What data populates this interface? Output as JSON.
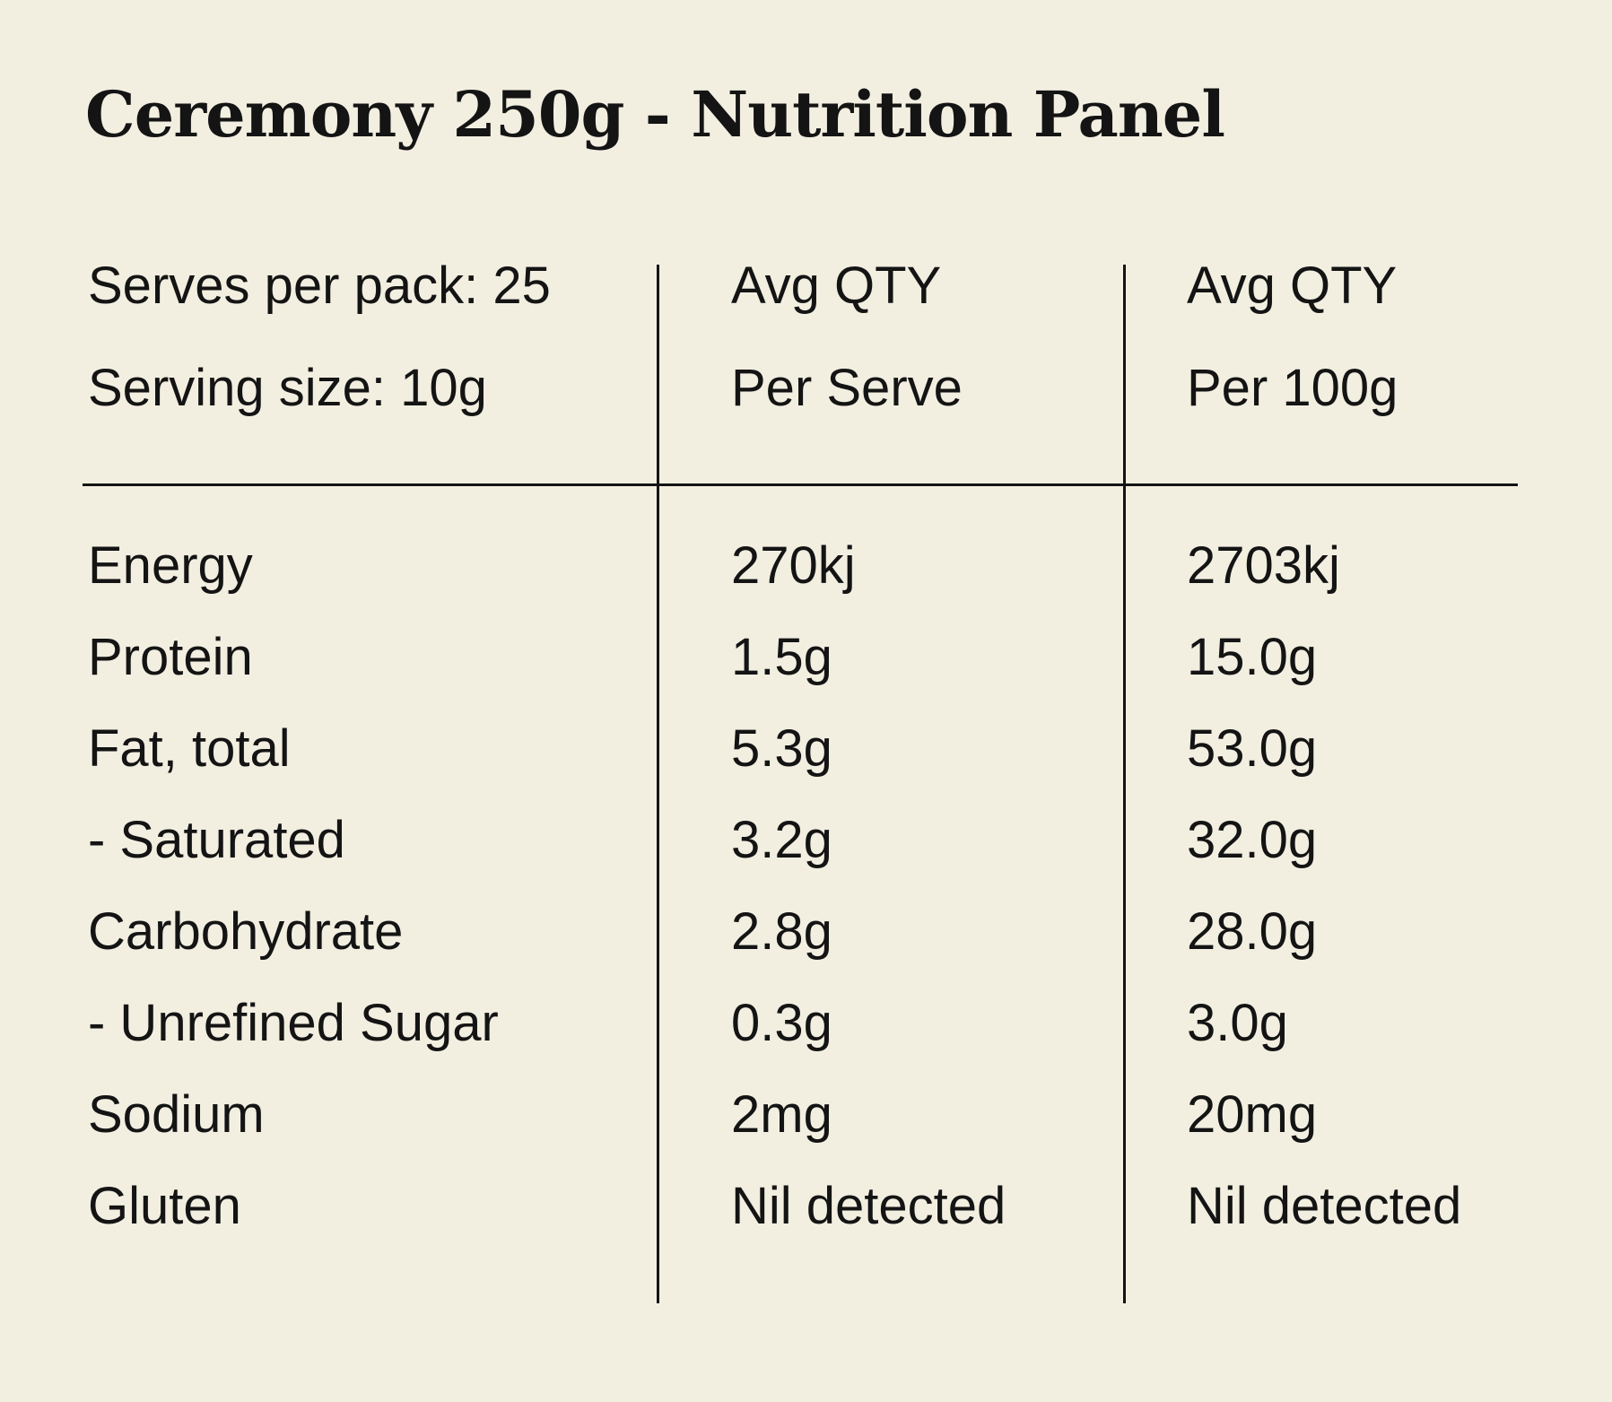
{
  "theme": {
    "background": "#f2efe1",
    "text": "#141414"
  },
  "title": "Ceremony 250g - Nutrition Panel",
  "table": {
    "header": {
      "serves_per_pack": "Serves per pack: 25",
      "serving_size": "Serving size: 10g",
      "col2_line1": "Avg QTY",
      "col2_line2": "Per Serve",
      "col3_line1": "Avg QTY",
      "col3_line2": "Per 100g"
    },
    "rows": [
      {
        "label": "Energy",
        "per_serve": "270kj",
        "per_100g": "2703kj"
      },
      {
        "label": "Protein",
        "per_serve": "1.5g",
        "per_100g": "15.0g"
      },
      {
        "label": "Fat, total",
        "per_serve": "5.3g",
        "per_100g": "53.0g"
      },
      {
        "label": "- Saturated",
        "per_serve": "3.2g",
        "per_100g": "32.0g"
      },
      {
        "label": "Carbohydrate",
        "per_serve": "2.8g",
        "per_100g": "28.0g"
      },
      {
        "label": "- Unrefined Sugar",
        "per_serve": "0.3g",
        "per_100g": "3.0g"
      },
      {
        "label": "Sodium",
        "per_serve": "2mg",
        "per_100g": "20mg"
      },
      {
        "label": "Gluten",
        "per_serve": "Nil detected",
        "per_100g": "Nil detected"
      }
    ]
  }
}
